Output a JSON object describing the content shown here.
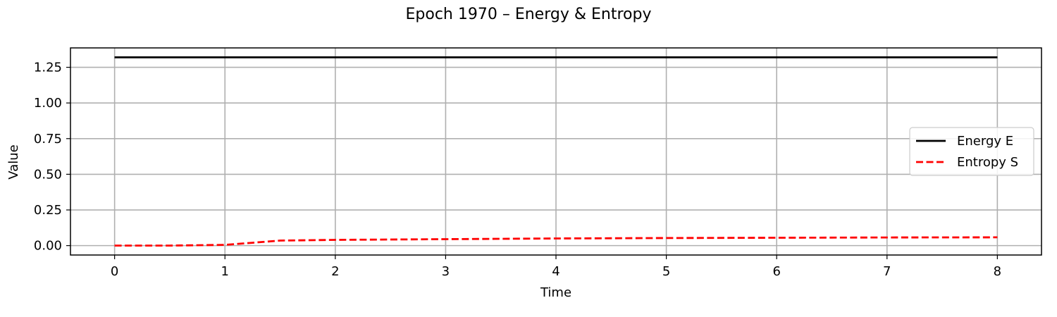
{
  "chart_data": {
    "type": "line",
    "title": "Epoch 1970 – Energy & Entropy",
    "xlabel": "Time",
    "ylabel": "Value",
    "xlim": [
      -0.4,
      8.4
    ],
    "ylim": [
      -0.066,
      1.386
    ],
    "xticks": [
      0,
      1,
      2,
      3,
      4,
      5,
      6,
      7,
      8
    ],
    "xtick_labels": [
      "0",
      "1",
      "2",
      "3",
      "4",
      "5",
      "6",
      "7",
      "8"
    ],
    "yticks": [
      0.0,
      0.25,
      0.5,
      0.75,
      1.0,
      1.25
    ],
    "ytick_labels": [
      "0.00",
      "0.25",
      "0.50",
      "0.75",
      "1.00",
      "1.25"
    ],
    "grid": true,
    "legend_position": "center-right",
    "series": [
      {
        "name": "Energy E",
        "color": "#000000",
        "dash": "solid",
        "x": [
          0,
          1,
          1.5,
          2,
          3,
          4,
          5,
          6,
          7,
          8
        ],
        "y": [
          1.32,
          1.32,
          1.32,
          1.32,
          1.32,
          1.32,
          1.32,
          1.32,
          1.32,
          1.32
        ]
      },
      {
        "name": "Entropy S",
        "color": "#ff0000",
        "dash": "dashed",
        "x": [
          0,
          0.5,
          1,
          1.25,
          1.5,
          2,
          3,
          4,
          5,
          6,
          7,
          8
        ],
        "y": [
          0.0,
          0.0,
          0.005,
          0.02,
          0.035,
          0.04,
          0.045,
          0.05,
          0.053,
          0.055,
          0.057,
          0.058
        ]
      }
    ]
  }
}
